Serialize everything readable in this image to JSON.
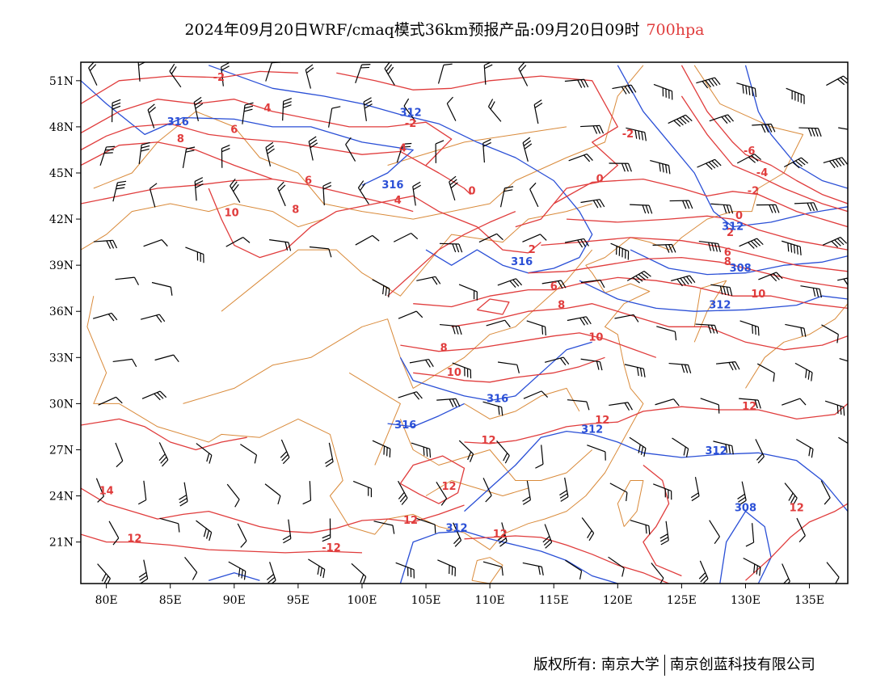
{
  "title": {
    "main": "2024年09月20日WRF/cmaq模式36km预报产品:09月20日09时",
    "level": "700hpa",
    "level_color": "#e03c3c"
  },
  "axes": {
    "lat_labels": [
      "51N",
      "48N",
      "45N",
      "42N",
      "39N",
      "36N",
      "33N",
      "30N",
      "27N",
      "24N",
      "21N"
    ],
    "lat_values": [
      51,
      48,
      45,
      42,
      39,
      36,
      33,
      30,
      27,
      24,
      21
    ],
    "lon_labels": [
      "80E",
      "85E",
      "90E",
      "95E",
      "100E",
      "105E",
      "110E",
      "115E",
      "120E",
      "125E",
      "130E",
      "135E"
    ],
    "lon_values": [
      80,
      85,
      90,
      95,
      100,
      105,
      110,
      115,
      120,
      125,
      130,
      135
    ],
    "lon_range": [
      78,
      138
    ],
    "lat_range": [
      18.3,
      52.2
    ]
  },
  "colors": {
    "temperature": "#e03c3c",
    "height": "#2a4fd6",
    "boundary": "#d98a3a",
    "wind": "#000000"
  },
  "contour_labels": {
    "temperature": [
      {
        "text": "-2",
        "lon": 88.8,
        "lat": 51.0
      },
      {
        "text": "4",
        "lon": 92.6,
        "lat": 49.0
      },
      {
        "text": "8",
        "lon": 85.8,
        "lat": 47.0
      },
      {
        "text": "6",
        "lon": 90.0,
        "lat": 47.6
      },
      {
        "text": "-2",
        "lon": 103.8,
        "lat": 48.0
      },
      {
        "text": "4",
        "lon": 103.2,
        "lat": 46.4
      },
      {
        "text": "6",
        "lon": 95.8,
        "lat": 44.3
      },
      {
        "text": "8",
        "lon": 94.8,
        "lat": 42.4
      },
      {
        "text": "10",
        "lon": 89.8,
        "lat": 42.2
      },
      {
        "text": "4",
        "lon": 102.8,
        "lat": 43.0
      },
      {
        "text": "0",
        "lon": 108.6,
        "lat": 43.6
      },
      {
        "text": "0",
        "lon": 118.6,
        "lat": 44.4
      },
      {
        "text": "-2",
        "lon": 120.8,
        "lat": 47.3
      },
      {
        "text": "-6",
        "lon": 130.3,
        "lat": 46.2
      },
      {
        "text": "-4",
        "lon": 131.3,
        "lat": 44.8
      },
      {
        "text": "-2",
        "lon": 130.6,
        "lat": 43.6
      },
      {
        "text": "0",
        "lon": 129.5,
        "lat": 42.0
      },
      {
        "text": "2",
        "lon": 128.8,
        "lat": 40.9
      },
      {
        "text": "6",
        "lon": 128.6,
        "lat": 39.6
      },
      {
        "text": "8",
        "lon": 128.6,
        "lat": 39.0
      },
      {
        "text": "10",
        "lon": 131.0,
        "lat": 36.9
      },
      {
        "text": "2",
        "lon": 113.3,
        "lat": 39.8
      },
      {
        "text": "6",
        "lon": 115.0,
        "lat": 37.4
      },
      {
        "text": "8",
        "lon": 115.6,
        "lat": 36.2
      },
      {
        "text": "10",
        "lon": 118.3,
        "lat": 34.1
      },
      {
        "text": "8",
        "lon": 106.4,
        "lat": 33.4
      },
      {
        "text": "10",
        "lon": 107.2,
        "lat": 31.8
      },
      {
        "text": "12",
        "lon": 130.3,
        "lat": 29.6
      },
      {
        "text": "12",
        "lon": 118.8,
        "lat": 28.7
      },
      {
        "text": "12",
        "lon": 109.9,
        "lat": 27.4
      },
      {
        "text": "12",
        "lon": 106.8,
        "lat": 24.4
      },
      {
        "text": "14",
        "lon": 80.0,
        "lat": 24.1
      },
      {
        "text": "12",
        "lon": 82.2,
        "lat": 21.0
      },
      {
        "text": "-12",
        "lon": 97.6,
        "lat": 20.4
      },
      {
        "text": "12",
        "lon": 103.8,
        "lat": 22.2
      },
      {
        "text": "12",
        "lon": 110.8,
        "lat": 21.3
      },
      {
        "text": "12",
        "lon": 134.0,
        "lat": 23.0
      }
    ],
    "height": [
      {
        "text": "312",
        "lon": 103.8,
        "lat": 48.7
      },
      {
        "text": "316",
        "lon": 85.6,
        "lat": 48.1
      },
      {
        "text": "316",
        "lon": 102.4,
        "lat": 44.0
      },
      {
        "text": "312",
        "lon": 129.0,
        "lat": 41.3
      },
      {
        "text": "316",
        "lon": 112.5,
        "lat": 39.0
      },
      {
        "text": "308",
        "lon": 129.6,
        "lat": 38.6
      },
      {
        "text": "312",
        "lon": 128.0,
        "lat": 36.2
      },
      {
        "text": "316",
        "lon": 110.6,
        "lat": 30.1
      },
      {
        "text": "316",
        "lon": 103.4,
        "lat": 28.4
      },
      {
        "text": "312",
        "lon": 118.0,
        "lat": 28.1
      },
      {
        "text": "312",
        "lon": 127.7,
        "lat": 26.7
      },
      {
        "text": "308",
        "lon": 130.0,
        "lat": 23.0
      },
      {
        "text": "312",
        "lon": 107.4,
        "lat": 21.7
      }
    ]
  },
  "footer": {
    "left": "版权所有: 南京大学",
    "right": "南京创蓝科技有限公司"
  }
}
